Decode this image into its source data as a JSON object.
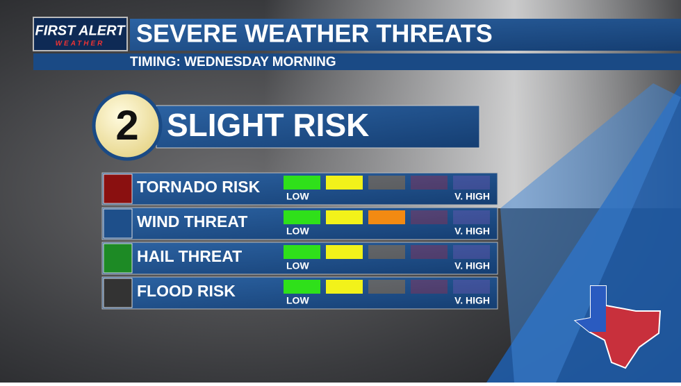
{
  "header": {
    "logo_top": "FIRST ALERT",
    "logo_bottom": "WEATHER",
    "title": "SEVERE WEATHER THREATS",
    "subtitle": "TIMING: WEDNESDAY MORNING"
  },
  "risk": {
    "level": "2",
    "label": "SLIGHT RISK"
  },
  "scale": {
    "low": "LOW",
    "high": "V. HIGH",
    "colors": [
      "#2fe01a",
      "#f2f21a",
      "#f28a12",
      "#c8203c",
      "#8a5cc8"
    ]
  },
  "threats": [
    {
      "label": "TORNADO RISK",
      "level": 2
    },
    {
      "label": "WIND THREAT",
      "level": 3
    },
    {
      "label": "HAIL THREAT",
      "level": 2
    },
    {
      "label": "FLOOD RISK",
      "level": 2
    }
  ]
}
